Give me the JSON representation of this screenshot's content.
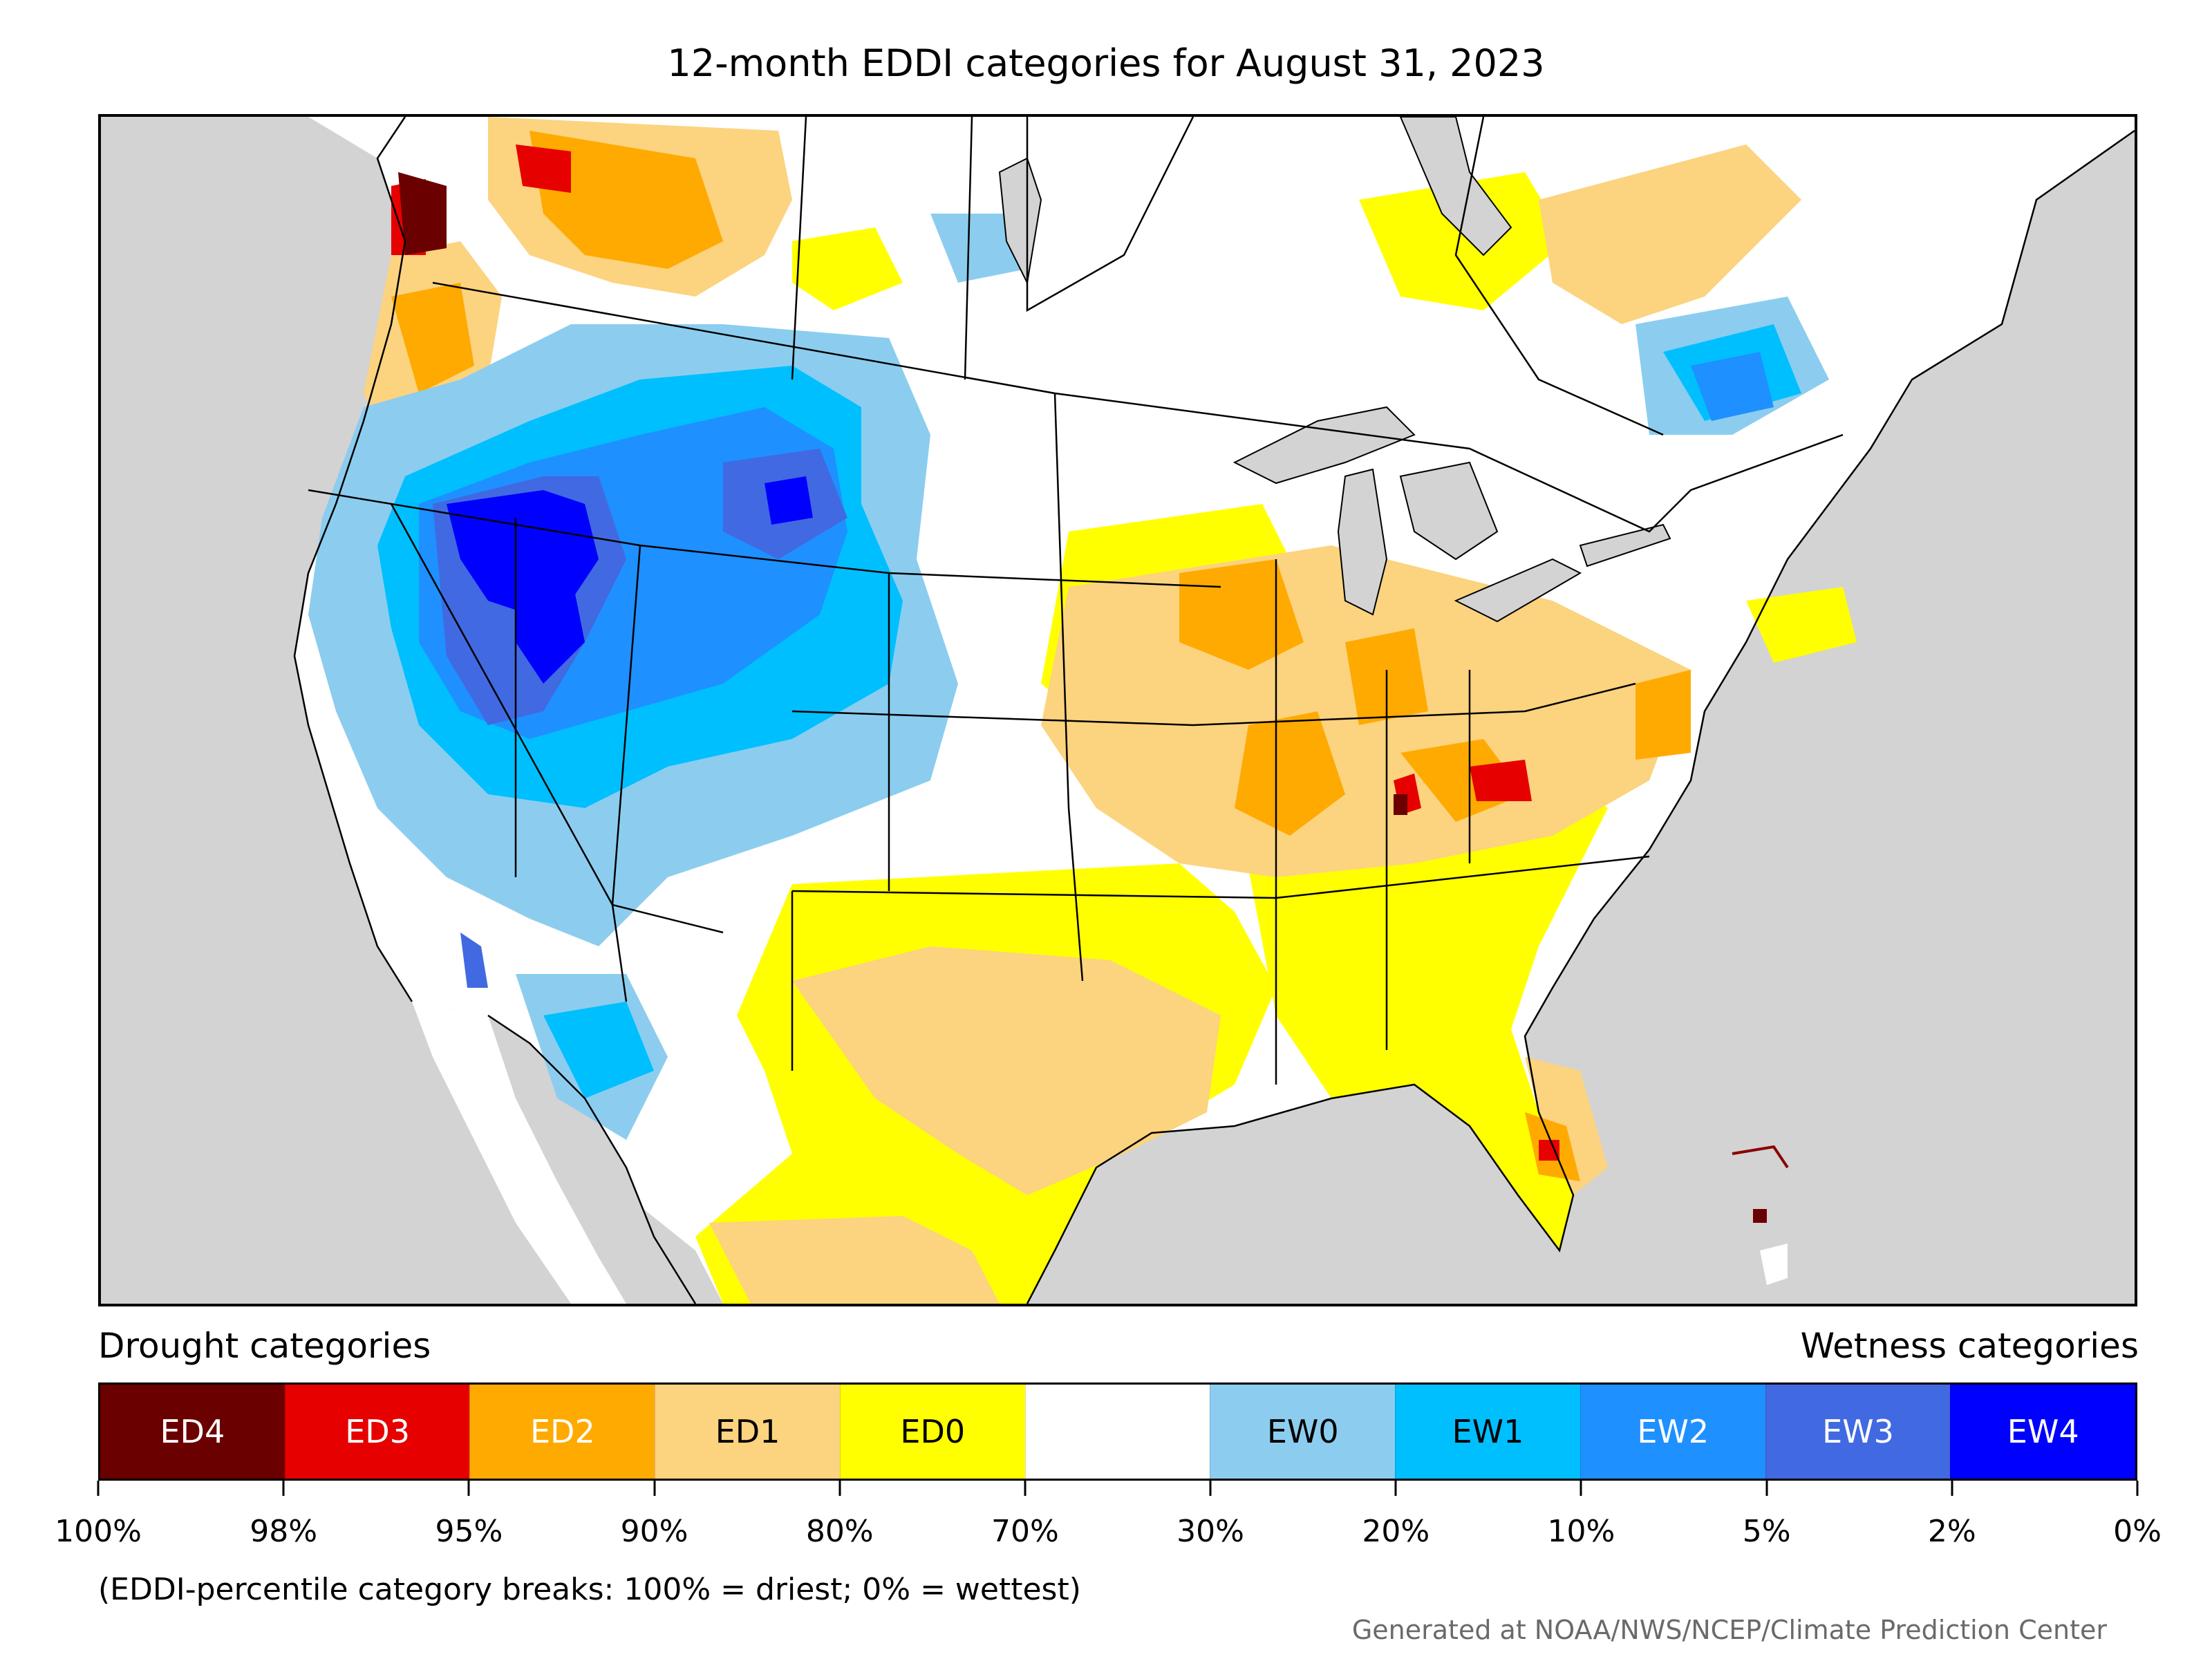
{
  "title": "12-month EDDI categories for August 31, 2023",
  "legend": {
    "drought_heading": "Drought categories",
    "wetness_heading": "Wetness categories",
    "categories": [
      {
        "code": "ED4",
        "color": "#6b0000",
        "text_color": "#ffffff"
      },
      {
        "code": "ED3",
        "color": "#e60000",
        "text_color": "#ffffff"
      },
      {
        "code": "ED2",
        "color": "#ffaa00",
        "text_color": "#ffffff"
      },
      {
        "code": "ED1",
        "color": "#fcd37f",
        "text_color": "#000000"
      },
      {
        "code": "ED0",
        "color": "#ffff00",
        "text_color": "#000000"
      },
      {
        "code": "",
        "color": "#ffffff",
        "text_color": "#000000"
      },
      {
        "code": "EW0",
        "color": "#8ccdef",
        "text_color": "#000000"
      },
      {
        "code": "EW1",
        "color": "#00bfff",
        "text_color": "#000000"
      },
      {
        "code": "EW2",
        "color": "#1e90ff",
        "text_color": "#ffffff"
      },
      {
        "code": "EW3",
        "color": "#4169e1",
        "text_color": "#ffffff"
      },
      {
        "code": "EW4",
        "color": "#0000ff",
        "text_color": "#ffffff"
      }
    ],
    "breaks": [
      "100%",
      "98%",
      "95%",
      "90%",
      "80%",
      "70%",
      "30%",
      "20%",
      "10%",
      "5%",
      "2%",
      "0%"
    ]
  },
  "note": "(EDDI-percentile category breaks: 100% = driest; 0% = wettest)",
  "credit": "Generated at NOAA/NWS/NCEP/Climate Prediction Center",
  "map_colors": {
    "ocean": "#d3d3d3",
    "land": "#ffffff",
    "lakes": "#d3d3d3",
    "borders": "#000000"
  }
}
